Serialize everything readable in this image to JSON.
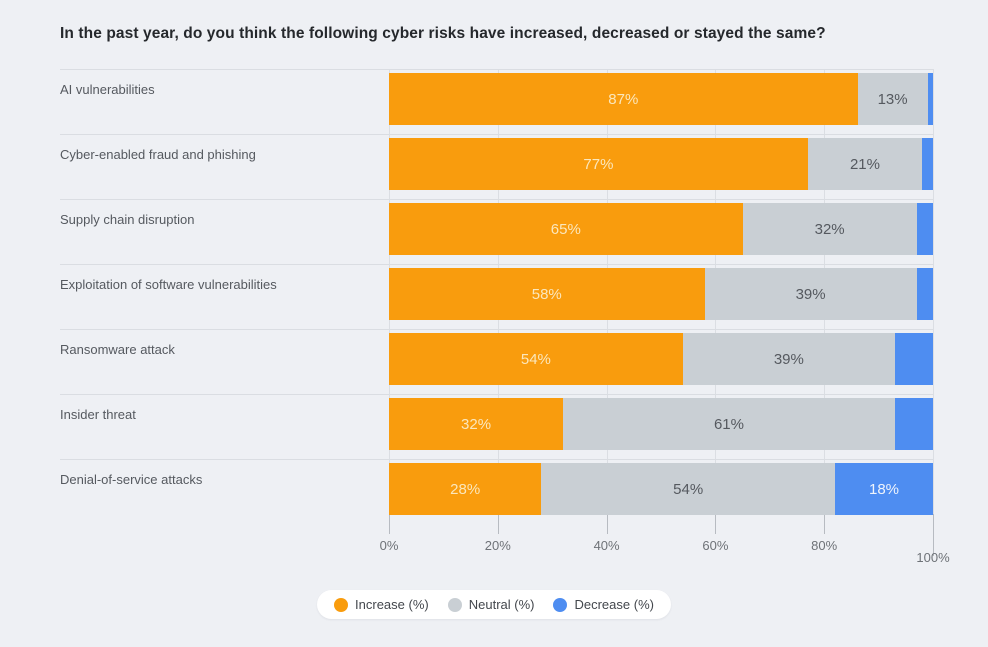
{
  "page": {
    "background": "#EEF0F4"
  },
  "title": "In the past year, do you think the following cyber risks have increased, decreased or stayed the same?",
  "chart_data": {
    "type": "bar",
    "orientation": "horizontal",
    "stacked": true,
    "title": "In the past year, do you think the following cyber risks have increased, decreased or stayed the same?",
    "categories": [
      "AI vulnerabilities",
      "Cyber-enabled fraud and phishing",
      "Supply chain disruption",
      "Exploitation of software vulnerabilities",
      "Ransomware attack",
      "Insider threat",
      "Denial-of-service attacks"
    ],
    "series": [
      {
        "name": "Increase (%)",
        "color": "#F99C0D",
        "label_color": "#FBE7BC",
        "values": [
          87,
          77,
          65,
          58,
          54,
          32,
          28
        ]
      },
      {
        "name": "Neutral (%)",
        "color": "#C9CFD4",
        "label_color": "#55595F",
        "values": [
          13,
          21,
          32,
          39,
          39,
          61,
          54
        ]
      },
      {
        "name": "Decrease (%)",
        "color": "#4E8DF1",
        "label_color": "#EFF4FC",
        "values": [
          1,
          2,
          3,
          3,
          7,
          7,
          18
        ]
      }
    ],
    "value_label_suffix": "%",
    "value_label_min": 10,
    "xlim": [
      0,
      100
    ],
    "axis_ticks": [
      {
        "value": 0,
        "label": "0%"
      },
      {
        "value": 20,
        "label": "20%"
      },
      {
        "value": 40,
        "label": "40%"
      },
      {
        "value": 60,
        "label": "60%"
      },
      {
        "value": 80,
        "label": "80%"
      },
      {
        "value": 100,
        "label": "100%"
      }
    ],
    "grid": true,
    "legend_position": "bottom-center"
  }
}
